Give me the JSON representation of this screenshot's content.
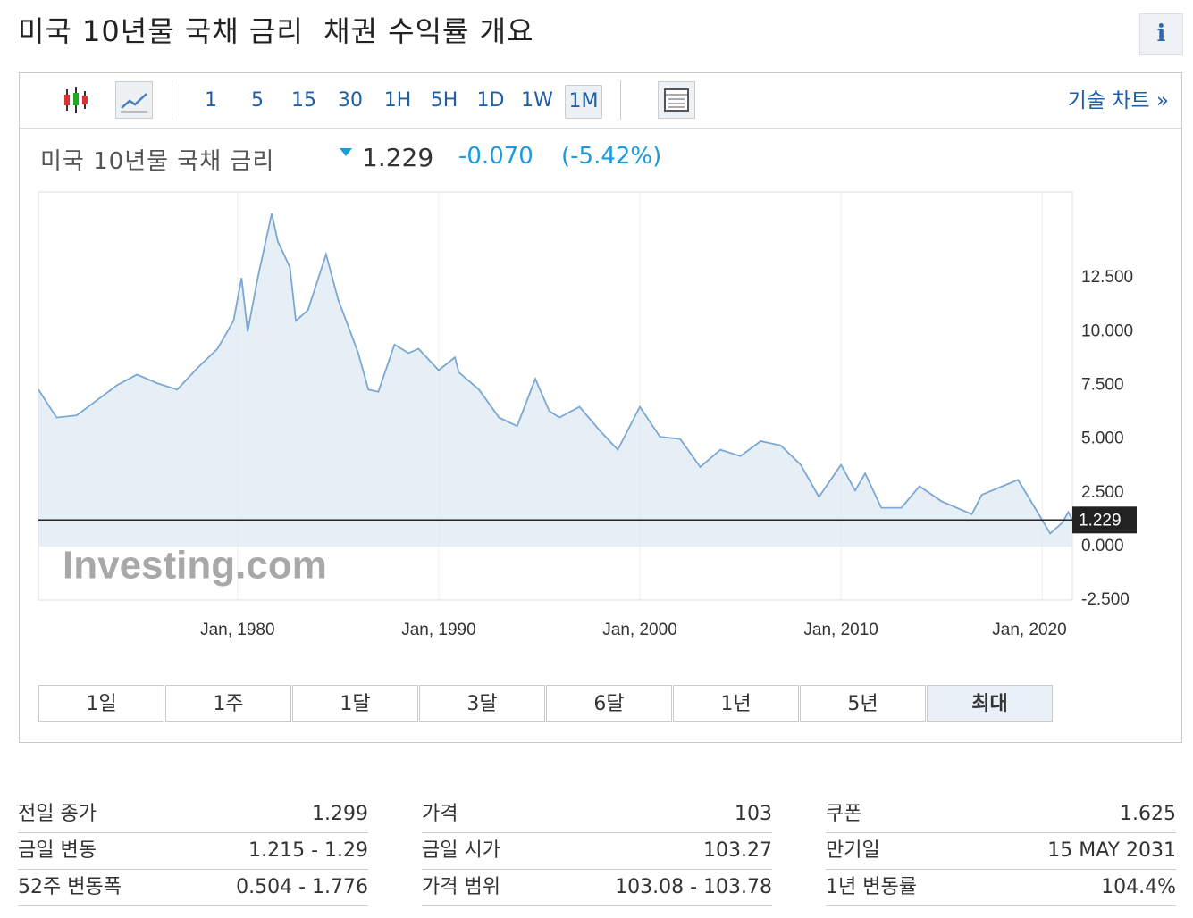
{
  "header": {
    "title": "미국 10년물 국채 금리  채권 수익률 개요",
    "info": "i"
  },
  "toolbar": {
    "intervals": [
      "1",
      "5",
      "15",
      "30",
      "1H",
      "5H",
      "1D",
      "1W",
      "1M"
    ],
    "active": "1M",
    "link": "기술 차트 »"
  },
  "chart_data": {
    "type": "line",
    "title": "미국 10년물 국채 금리",
    "change": "-0.070",
    "change_pct": "(-5.42%)",
    "watermark": "Investing.com",
    "last_value": 1.229,
    "x": [
      1970.1,
      1971,
      1972,
      1973,
      1974,
      1975,
      1976,
      1977,
      1978,
      1979,
      1979.8,
      1980.2,
      1980.5,
      1981,
      1981.7,
      1982,
      1982.6,
      1982.9,
      1983.5,
      1984.4,
      1985,
      1986,
      1986.5,
      1987,
      1987.8,
      1988.5,
      1989,
      1990,
      1990.8,
      1991,
      1992,
      1993,
      1993.9,
      1994.8,
      1995.5,
      1996,
      1997,
      1998,
      1998.9,
      2000,
      2001,
      2002,
      2003,
      2004,
      2005,
      2006,
      2007,
      2008,
      2008.9,
      2010,
      2010.7,
      2011.2,
      2012,
      2013,
      2013.9,
      2015,
      2016.5,
      2017,
      2018.8,
      2019.7,
      2020.4,
      2021,
      2021.3,
      2021.5
    ],
    "series": [
      {
        "name": "미국 10년물 국채 금리",
        "color": "#7ba7d4",
        "values": [
          7.3,
          6.0,
          6.1,
          6.8,
          7.5,
          8.0,
          7.6,
          7.3,
          8.3,
          9.2,
          10.5,
          12.5,
          10.0,
          12.5,
          15.5,
          14.2,
          13.0,
          10.5,
          11.0,
          13.6,
          11.5,
          9.0,
          7.3,
          7.2,
          9.4,
          9.0,
          9.2,
          8.2,
          8.8,
          8.1,
          7.3,
          6.0,
          5.6,
          7.8,
          6.3,
          6.0,
          6.5,
          5.4,
          4.5,
          6.5,
          5.1,
          5.0,
          3.7,
          4.5,
          4.2,
          4.9,
          4.7,
          3.8,
          2.3,
          3.8,
          2.6,
          3.4,
          1.8,
          1.8,
          2.8,
          2.1,
          1.5,
          2.4,
          3.1,
          1.7,
          0.6,
          1.1,
          1.6,
          1.229
        ]
      }
    ],
    "xlim": [
      1970.1,
      2021.5
    ],
    "ylim": [
      -2.5,
      16.5
    ],
    "xticks": [
      {
        "value": 1980,
        "label": "Jan, 1980"
      },
      {
        "value": 1990,
        "label": "Jan, 1990"
      },
      {
        "value": 2000,
        "label": "Jan, 2000"
      },
      {
        "value": 2010,
        "label": "Jan, 2010"
      },
      {
        "value": 2020,
        "label": "Jan, 2020"
      }
    ],
    "yticks": [
      {
        "value": -2.5,
        "label": "-2.500"
      },
      {
        "value": 0,
        "label": "0.000"
      },
      {
        "value": 2.5,
        "label": "2.500"
      },
      {
        "value": 5,
        "label": "5.000"
      },
      {
        "value": 7.5,
        "label": "7.500"
      },
      {
        "value": 10,
        "label": "10.000"
      },
      {
        "value": 12.5,
        "label": "12.500"
      }
    ]
  },
  "ranges": {
    "buttons": [
      "1일",
      "1주",
      "1달",
      "3달",
      "6달",
      "1년",
      "5년",
      "최대"
    ],
    "active": "최대"
  },
  "stats": [
    [
      [
        "전일 종가",
        "1.299"
      ],
      [
        "금일 변동",
        "1.215 - 1.29"
      ],
      [
        "52주 변동폭",
        "0.504 - 1.776"
      ]
    ],
    [
      [
        "가격",
        "103"
      ],
      [
        "금일 시가",
        "103.27"
      ],
      [
        "가격 범위",
        "103.08 - 103.78"
      ]
    ],
    [
      [
        "쿠폰",
        "1.625"
      ],
      [
        "만기일",
        "15 MAY 2031"
      ],
      [
        "1년 변동률",
        "104.4%"
      ]
    ]
  ]
}
